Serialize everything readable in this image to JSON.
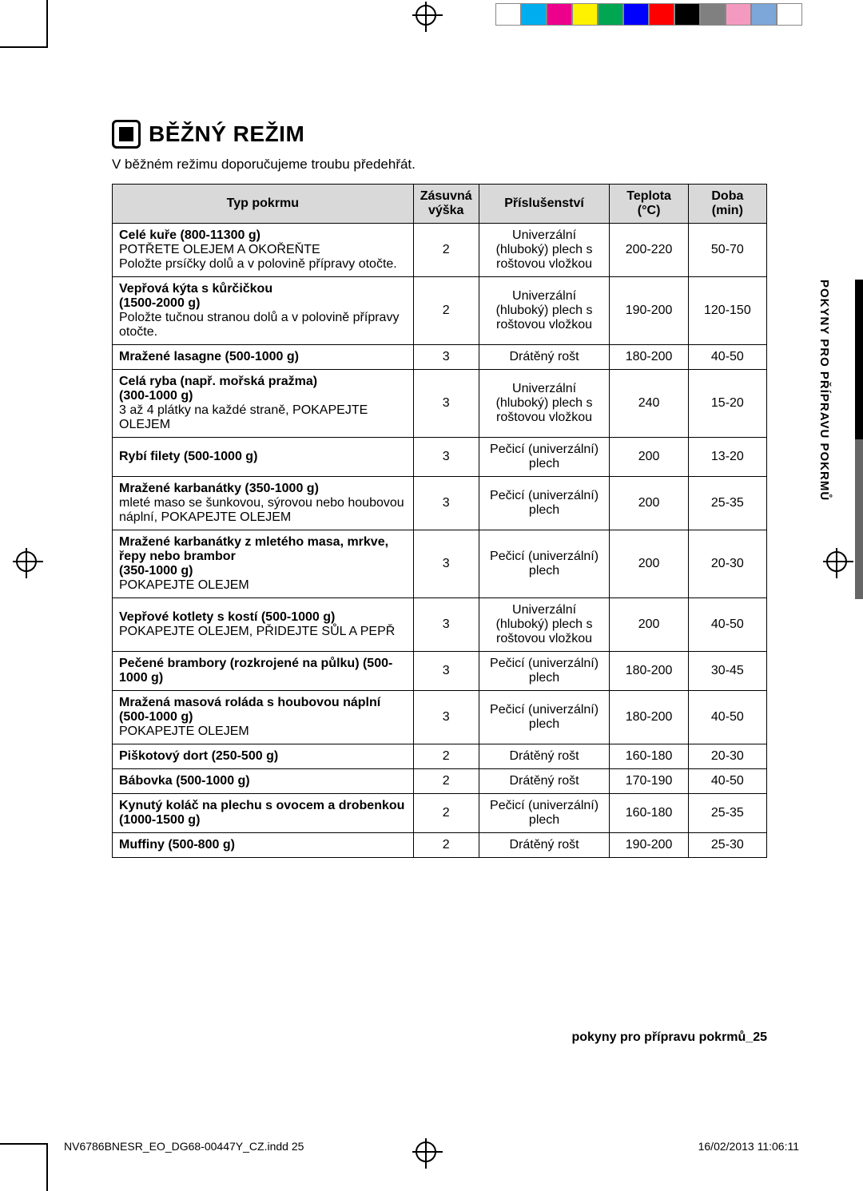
{
  "reg_colors": [
    "#ffffff",
    "#00aeef",
    "#ec008c",
    "#fff200",
    "#00a651",
    "#0000ff",
    "#ff0000",
    "#000000",
    "#808080",
    "#f49ac1",
    "#7da7d9",
    "#ffffff"
  ],
  "side_label": "POKYNY PRO PŘÍPRAVU POKRMŮ",
  "title": "BĚŽNÝ REŽIM",
  "intro": "V běžném režimu doporučujeme troubu předehřát.",
  "table": {
    "headers": {
      "typ": "Typ pokrmu",
      "zas": "Zásuvná výška",
      "pris": "Příslušenství",
      "tep": "Teplota (°C)",
      "doba": "Doba (min)"
    },
    "rows": [
      {
        "typ": "<strong>Celé kuře (800-11300 g)</strong><br>POTŘETE OLEJEM A OKOŘEŇTE<br>Položte prsíčky dolů a v polovině přípravy otočte.",
        "zas": "2",
        "pris": "Univerzální (hluboký) plech s roštovou vložkou",
        "tep": "200-220",
        "doba": "50-70"
      },
      {
        "typ": "<strong>Vepřová kýta s kůrčičkou</strong><br><strong>(1500-2000 g)</strong><br>Položte tučnou stranou dolů a v polovině přípravy otočte.",
        "zas": "2",
        "pris": "Univerzální (hluboký) plech s roštovou vložkou",
        "tep": "190-200",
        "doba": "120-150"
      },
      {
        "typ": "<strong>Mražené lasagne (500-1000 g)</strong>",
        "zas": "3",
        "pris": "Drátěný rošt",
        "tep": "180-200",
        "doba": "40-50"
      },
      {
        "typ": "<strong>Celá ryba (např. mořská pražma)</strong><br><strong>(300-1000 g)</strong><br>3 až 4 plátky na každé straně, POKAPEJTE OLEJEM",
        "zas": "3",
        "pris": "Univerzální (hluboký) plech s roštovou vložkou",
        "tep": "240",
        "doba": "15-20"
      },
      {
        "typ": "<strong>Rybí filety (500-1000 g)</strong>",
        "zas": "3",
        "pris": "Pečicí (univerzální) plech",
        "tep": "200",
        "doba": "13-20"
      },
      {
        "typ": "<strong>Mražené karbanátky (350-1000 g)</strong><br>mleté maso se šunkovou, sýrovou nebo houbovou náplní, POKAPEJTE OLEJEM",
        "zas": "3",
        "pris": "Pečicí (univerzální) plech",
        "tep": "200",
        "doba": "25-35"
      },
      {
        "typ": "<strong>Mražené karbanátky z mletého masa, mrkve, řepy nebo brambor</strong><br><strong>(350-1000 g)</strong><br>POKAPEJTE OLEJEM",
        "zas": "3",
        "pris": "Pečicí (univerzální) plech",
        "tep": "200",
        "doba": "20-30"
      },
      {
        "typ": "<strong>Vepřové kotlety s kostí (500-1000 g)</strong><br>POKAPEJTE OLEJEM, PŘIDEJTE SŮL A PEPŘ",
        "zas": "3",
        "pris": "Univerzální (hluboký) plech s roštovou vložkou",
        "tep": "200",
        "doba": "40-50"
      },
      {
        "typ": "<strong>Pečené brambory (rozkrojené na půlku) (500-1000 g)</strong>",
        "zas": "3",
        "pris": "Pečicí (univerzální) plech",
        "tep": "180-200",
        "doba": "30-45"
      },
      {
        "typ": "<strong>Mražená masová roláda s houbovou náplní (500-1000 g)</strong><br>POKAPEJTE OLEJEM",
        "zas": "3",
        "pris": "Pečicí (univerzální) plech",
        "tep": "180-200",
        "doba": "40-50"
      },
      {
        "typ": "<strong>Piškotový dort (250-500 g)</strong>",
        "zas": "2",
        "pris": "Drátěný rošt",
        "tep": "160-180",
        "doba": "20-30"
      },
      {
        "typ": "<strong>Bábovka (500-1000 g)</strong>",
        "zas": "2",
        "pris": "Drátěný rošt",
        "tep": "170-190",
        "doba": "40-50"
      },
      {
        "typ": "<strong>Kynutý koláč na plechu s ovocem a drobenkou (1000-1500 g)</strong>",
        "zas": "2",
        "pris": "Pečicí (univerzální) plech",
        "tep": "160-180",
        "doba": "25-35"
      },
      {
        "typ": "<strong>Muffiny (500-800 g)</strong>",
        "zas": "2",
        "pris": "Drátěný rošt",
        "tep": "190-200",
        "doba": "25-30"
      }
    ]
  },
  "page_footer": "pokyny pro přípravu pokrmů_25",
  "print_footer": {
    "file": "NV6786BNESR_EO_DG68-00447Y_CZ.indd   25",
    "ts": "16/02/2013   11:06:11"
  }
}
